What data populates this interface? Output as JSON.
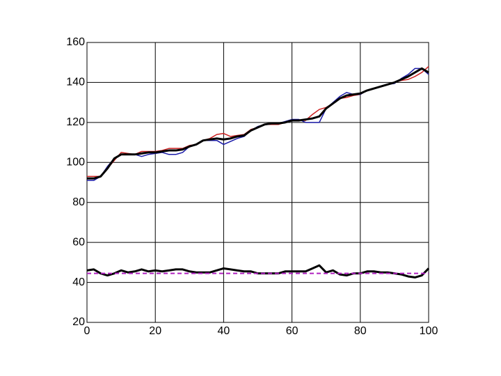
{
  "chart_data": {
    "type": "line",
    "x": [
      0,
      2,
      4,
      6,
      8,
      10,
      12,
      14,
      16,
      18,
      20,
      22,
      24,
      26,
      28,
      30,
      32,
      34,
      36,
      38,
      40,
      42,
      44,
      46,
      48,
      50,
      52,
      54,
      56,
      58,
      60,
      62,
      64,
      66,
      68,
      70,
      72,
      74,
      76,
      78,
      80,
      82,
      84,
      86,
      88,
      90,
      92,
      94,
      96,
      98,
      100
    ],
    "series": [
      {
        "color": "#cc2020",
        "width": 1.5,
        "values": [
          93,
          93,
          93,
          97,
          101,
          105,
          104.5,
          104,
          105.5,
          105.5,
          105.5,
          106,
          107,
          107,
          107,
          108.5,
          109,
          111,
          112,
          114,
          114.5,
          113,
          113.5,
          114,
          116.5,
          117.5,
          119,
          119,
          119,
          120,
          121,
          121,
          121,
          124,
          126.5,
          127.5,
          129.5,
          132,
          132.5,
          133.5,
          134,
          136,
          137,
          138,
          139,
          140,
          141,
          141.5,
          143,
          145,
          148
        ]
      },
      {
        "color": "#1a1aa8",
        "width": 1.5,
        "values": [
          91,
          91,
          93,
          98,
          102,
          104,
          104,
          104,
          103,
          104,
          104.5,
          105,
          104,
          104,
          105,
          108,
          109,
          111,
          111,
          111,
          109,
          110.5,
          112,
          113,
          116,
          118,
          119,
          119.5,
          119.5,
          120.5,
          121.5,
          121.5,
          120,
          120,
          120,
          127,
          130,
          133,
          135,
          134,
          134,
          136,
          137,
          138,
          139,
          139.5,
          142,
          144,
          147,
          147,
          144
        ]
      },
      {
        "color": "#000000",
        "width": 3,
        "values": [
          92,
          92,
          93,
          97,
          102,
          104,
          104,
          104,
          104.5,
          105,
          105,
          105.5,
          106,
          106,
          106.5,
          108,
          109,
          111,
          111.5,
          112,
          111.5,
          112,
          113,
          113.5,
          116,
          117.5,
          119,
          119.5,
          119.5,
          120,
          121,
          121,
          121.5,
          122,
          123,
          127,
          129.5,
          132,
          133.5,
          134,
          134.5,
          136,
          137,
          138,
          139,
          140,
          141.5,
          143,
          145,
          147,
          145
        ]
      },
      {
        "color": "#000000",
        "width": 3,
        "values": [
          46,
          46.5,
          44.5,
          43.5,
          44.5,
          46,
          45,
          45.5,
          46.5,
          45.5,
          46,
          45.5,
          46,
          46.5,
          46.5,
          45.5,
          45,
          45,
          45,
          46,
          47,
          46.5,
          46,
          45.5,
          45.5,
          44.5,
          44.5,
          44.5,
          44.5,
          45.5,
          45.5,
          45.5,
          45.5,
          47,
          48.5,
          45,
          46,
          44,
          43.5,
          44.5,
          44.5,
          45.5,
          45.5,
          45,
          45,
          44.5,
          44,
          43,
          42.5,
          43.5,
          47
        ]
      },
      {
        "color": "#b020c0",
        "width": 2,
        "dash": true,
        "x": [
          0,
          100
        ],
        "values": [
          44.5,
          44.5
        ]
      }
    ],
    "xlim": [
      0,
      100
    ],
    "xticks": [
      0,
      20,
      40,
      60,
      80,
      100
    ],
    "ylim": [
      20,
      160
    ],
    "yticks": [
      20,
      40,
      60,
      80,
      100,
      120,
      140,
      160
    ],
    "grid": true
  }
}
